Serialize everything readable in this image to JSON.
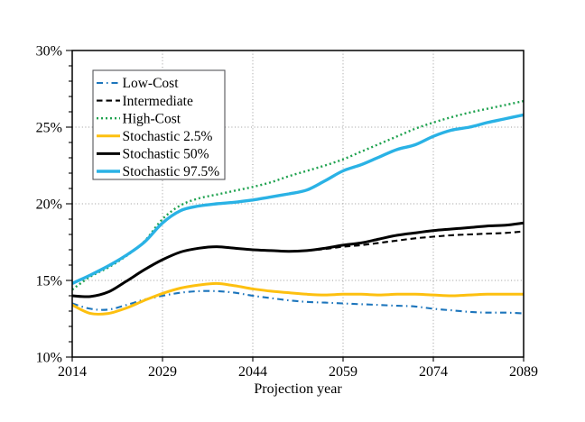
{
  "chart_data": {
    "type": "line",
    "title": "",
    "xlabel": "Projection year",
    "ylabel": "",
    "xlim": [
      2014,
      2089
    ],
    "ylim": [
      10,
      30
    ],
    "x_ticks": [
      2014,
      2029,
      2044,
      2059,
      2074,
      2089
    ],
    "x_tick_labels": [
      "2014",
      "2029",
      "2044",
      "2059",
      "2074",
      "2089"
    ],
    "y_ticks": [
      10,
      15,
      20,
      25,
      30
    ],
    "y_tick_labels": [
      "10%",
      "15%",
      "20%",
      "25%",
      "30%"
    ],
    "y_minor_tick_step": 1,
    "grid": {
      "h_lines": [
        15,
        20,
        25
      ],
      "v_lines": [
        2029,
        2044,
        2059,
        2074
      ],
      "style": "dotted",
      "color": "#999999"
    },
    "legend": {
      "position": "upper-left",
      "border_color": "#55565a",
      "background": "#ffffff"
    },
    "x": [
      2014,
      2017,
      2020,
      2023,
      2026,
      2029,
      2032,
      2035,
      2038,
      2041,
      2044,
      2047,
      2050,
      2053,
      2056,
      2059,
      2062,
      2065,
      2068,
      2071,
      2074,
      2077,
      2080,
      2083,
      2086,
      2089
    ],
    "series": [
      {
        "name": "Low-Cost",
        "color": "#1C75BC",
        "dash": "dashdot",
        "width": 2.1,
        "values": [
          13.5,
          13.15,
          13.1,
          13.4,
          13.75,
          14.0,
          14.2,
          14.3,
          14.3,
          14.2,
          14.0,
          13.85,
          13.7,
          13.6,
          13.55,
          13.5,
          13.45,
          13.4,
          13.35,
          13.3,
          13.15,
          13.05,
          12.95,
          12.9,
          12.9,
          12.85
        ]
      },
      {
        "name": "Intermediate",
        "color": "#000000",
        "dash": "dashed",
        "width": 2.1,
        "values": [
          14.0,
          13.95,
          14.25,
          14.95,
          15.7,
          16.35,
          16.85,
          17.1,
          17.2,
          17.1,
          17.0,
          16.95,
          16.9,
          16.95,
          17.05,
          17.2,
          17.3,
          17.45,
          17.6,
          17.75,
          17.85,
          17.95,
          18.0,
          18.05,
          18.1,
          18.2
        ]
      },
      {
        "name": "High-Cost",
        "color": "#1FA24F",
        "dash": "dotted",
        "width": 2.4,
        "values": [
          14.4,
          15.25,
          15.85,
          16.6,
          17.55,
          19.0,
          19.9,
          20.35,
          20.6,
          20.85,
          21.1,
          21.4,
          21.8,
          22.15,
          22.5,
          22.9,
          23.4,
          23.9,
          24.4,
          24.9,
          25.3,
          25.65,
          25.95,
          26.2,
          26.45,
          26.7
        ]
      },
      {
        "name": "Stochastic 2.5%",
        "color": "#FDC010",
        "dash": "solid",
        "width": 3.0,
        "values": [
          13.4,
          12.85,
          12.85,
          13.2,
          13.7,
          14.15,
          14.5,
          14.7,
          14.8,
          14.65,
          14.45,
          14.3,
          14.2,
          14.1,
          14.05,
          14.1,
          14.1,
          14.05,
          14.1,
          14.1,
          14.05,
          14.0,
          14.05,
          14.1,
          14.1,
          14.1
        ]
      },
      {
        "name": "Stochastic 50%",
        "color": "#000000",
        "dash": "solid",
        "width": 3.0,
        "values": [
          14.0,
          13.95,
          14.25,
          14.95,
          15.7,
          16.35,
          16.85,
          17.1,
          17.2,
          17.1,
          17.0,
          16.95,
          16.9,
          16.95,
          17.1,
          17.3,
          17.45,
          17.7,
          17.95,
          18.1,
          18.25,
          18.35,
          18.45,
          18.55,
          18.6,
          18.75
        ]
      },
      {
        "name": "Stochastic 97.5%",
        "color": "#2AB2E5",
        "dash": "solid",
        "width": 3.4,
        "values": [
          14.8,
          15.35,
          15.95,
          16.65,
          17.5,
          18.75,
          19.55,
          19.85,
          20.0,
          20.1,
          20.25,
          20.45,
          20.65,
          20.9,
          21.5,
          22.15,
          22.55,
          23.05,
          23.55,
          23.85,
          24.4,
          24.8,
          25.0,
          25.3,
          25.55,
          25.8
        ]
      }
    ]
  }
}
